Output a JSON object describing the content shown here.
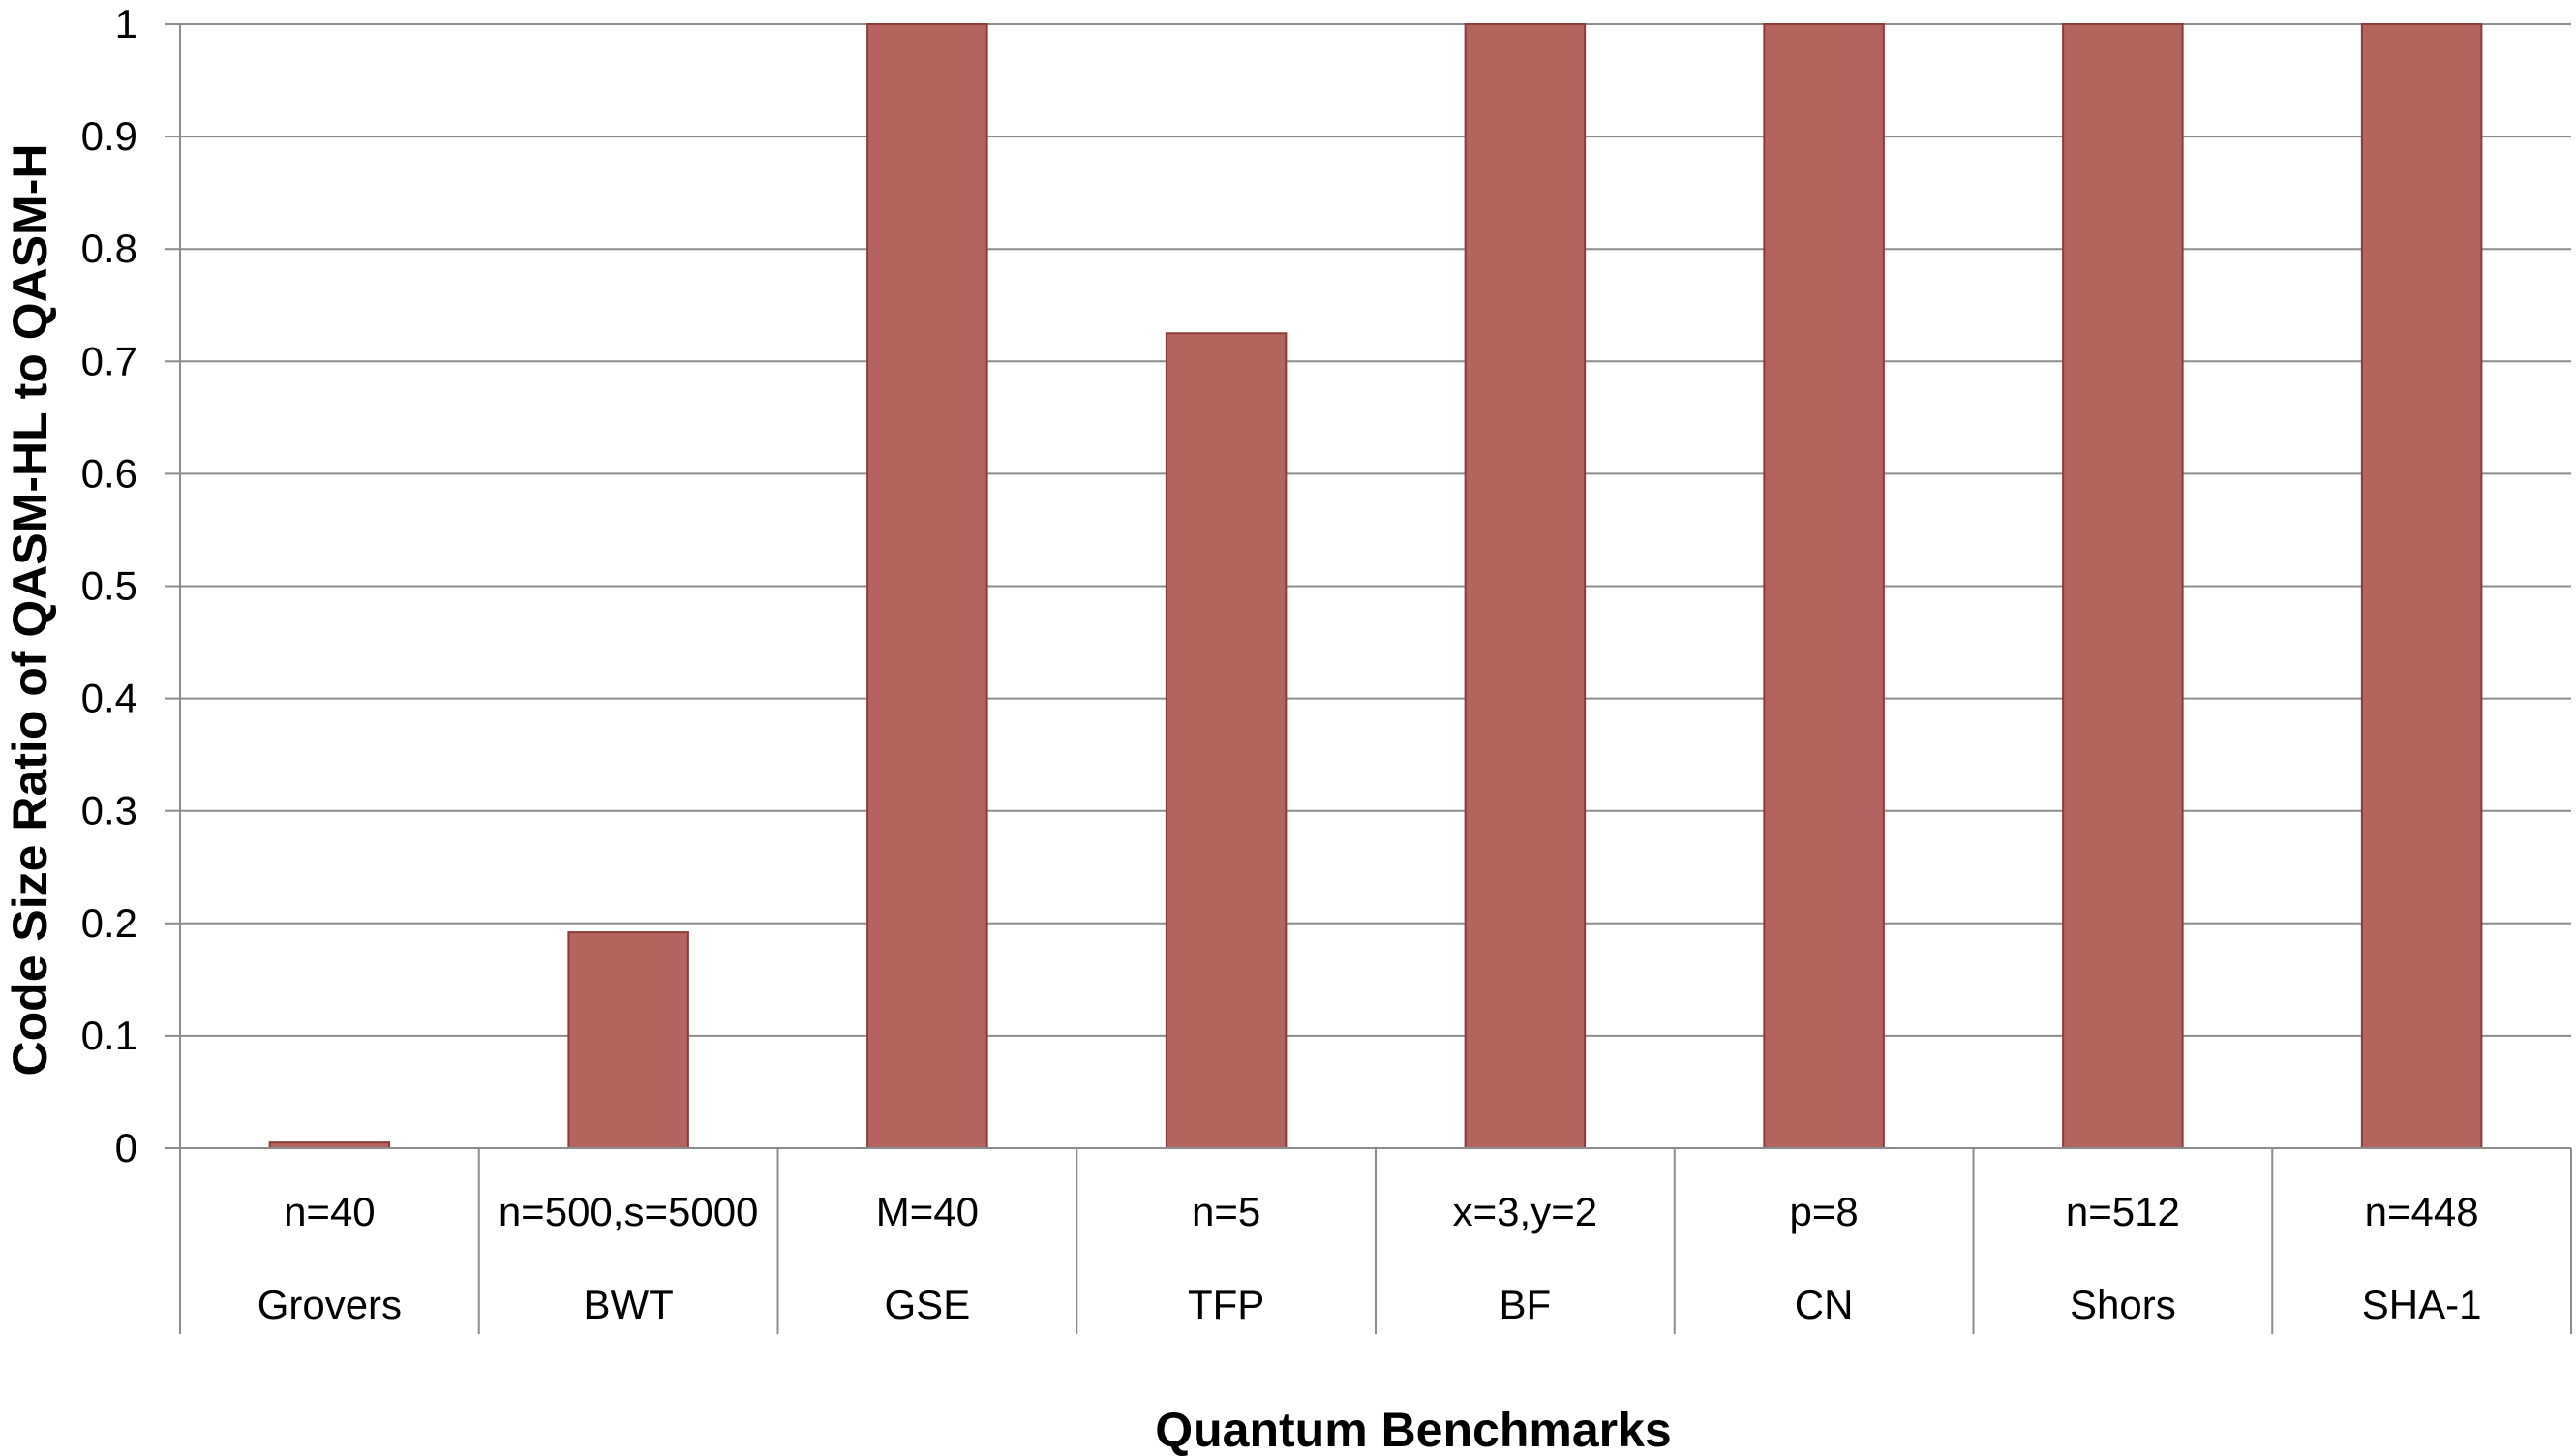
{
  "chart_data": {
    "type": "bar",
    "title": "",
    "xlabel": "Quantum Benchmarks",
    "ylabel": "Code Size Ratio of QASM-HL to QASM-H",
    "ylim": [
      0,
      1
    ],
    "yticks": [
      "0",
      "0.1",
      "0.2",
      "0.3",
      "0.4",
      "0.5",
      "0.6",
      "0.7",
      "0.8",
      "0.9",
      "1"
    ],
    "grid": true,
    "legend": "none",
    "categories": [
      {
        "param": "n=40",
        "name": "Grovers"
      },
      {
        "param": "n=500,s=5000",
        "name": "BWT"
      },
      {
        "param": "M=40",
        "name": "GSE"
      },
      {
        "param": "n=5",
        "name": "TFP"
      },
      {
        "param": "x=3,y=2",
        "name": "BF"
      },
      {
        "param": "p=8",
        "name": "CN"
      },
      {
        "param": "n=512",
        "name": "Shors"
      },
      {
        "param": "n=448",
        "name": "SHA-1"
      }
    ],
    "values": [
      0.005,
      0.192,
      1.0,
      0.725,
      1.0,
      1.0,
      1.0,
      1.0
    ],
    "colors": {
      "bar_fill": "#b5635e",
      "bar_stroke": "#8c3b37",
      "gridline": "#8c8c8c",
      "axis": "#8c8c8c"
    }
  }
}
